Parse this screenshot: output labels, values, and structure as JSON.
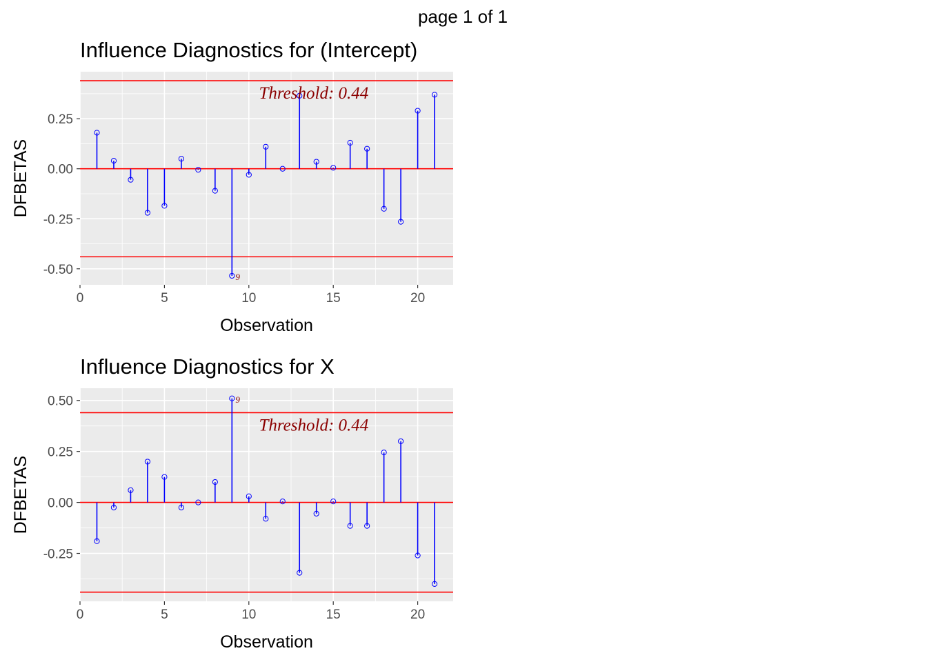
{
  "page_label": "page 1 of 1",
  "chart_data": [
    {
      "type": "stem",
      "title": "Influence Diagnostics for (Intercept)",
      "xlabel": "Observation",
      "ylabel": "DFBETAS",
      "xlim": [
        0,
        22.1
      ],
      "ylim": [
        -0.58,
        0.485
      ],
      "x_ticks": [
        0,
        5,
        10,
        15,
        20
      ],
      "y_ticks": [
        -0.5,
        -0.25,
        0.0,
        0.25
      ],
      "y_tick_labels": [
        "-0.50",
        "-0.25",
        "0.00",
        "0.25"
      ],
      "threshold": 0.44,
      "threshold_label": "Threshold: 0.44",
      "grid": true,
      "colors": {
        "stem": "#0000ff",
        "threshold": "#ff0000",
        "label": "#8b0000",
        "panel": "#ebebeb",
        "grid": "#ffffff"
      },
      "x": [
        1,
        2,
        3,
        4,
        5,
        6,
        7,
        8,
        9,
        10,
        11,
        12,
        13,
        14,
        15,
        16,
        17,
        18,
        19,
        20,
        21
      ],
      "values": [
        0.18,
        0.04,
        -0.055,
        -0.22,
        -0.185,
        0.05,
        -0.005,
        -0.11,
        -0.535,
        -0.03,
        0.11,
        0.0,
        0.365,
        0.035,
        0.005,
        0.13,
        0.1,
        -0.2,
        -0.265,
        0.29,
        0.37
      ],
      "point_labels": [
        {
          "x": 9,
          "y": -0.535,
          "text": "9"
        }
      ]
    },
    {
      "type": "stem",
      "title": "Influence Diagnostics for X",
      "xlabel": "Observation",
      "ylabel": "DFBETAS",
      "xlim": [
        0,
        22.1
      ],
      "ylim": [
        -0.485,
        0.56
      ],
      "x_ticks": [
        0,
        5,
        10,
        15,
        20
      ],
      "y_ticks": [
        -0.25,
        0.0,
        0.25,
        0.5
      ],
      "y_tick_labels": [
        "-0.25",
        "0.00",
        "0.25",
        "0.50"
      ],
      "threshold": 0.44,
      "threshold_label": "Threshold: 0.44",
      "grid": true,
      "colors": {
        "stem": "#0000ff",
        "threshold": "#ff0000",
        "label": "#8b0000",
        "panel": "#ebebeb",
        "grid": "#ffffff"
      },
      "x": [
        1,
        2,
        3,
        4,
        5,
        6,
        7,
        8,
        9,
        10,
        11,
        12,
        13,
        14,
        15,
        16,
        17,
        18,
        19,
        20,
        21
      ],
      "values": [
        -0.19,
        -0.025,
        0.06,
        0.2,
        0.125,
        -0.025,
        0.0,
        0.1,
        0.51,
        0.03,
        -0.08,
        0.005,
        -0.345,
        -0.055,
        0.005,
        -0.115,
        -0.115,
        0.245,
        0.3,
        -0.26,
        -0.4
      ],
      "point_labels": [
        {
          "x": 9,
          "y": 0.51,
          "text": "9"
        }
      ]
    }
  ]
}
